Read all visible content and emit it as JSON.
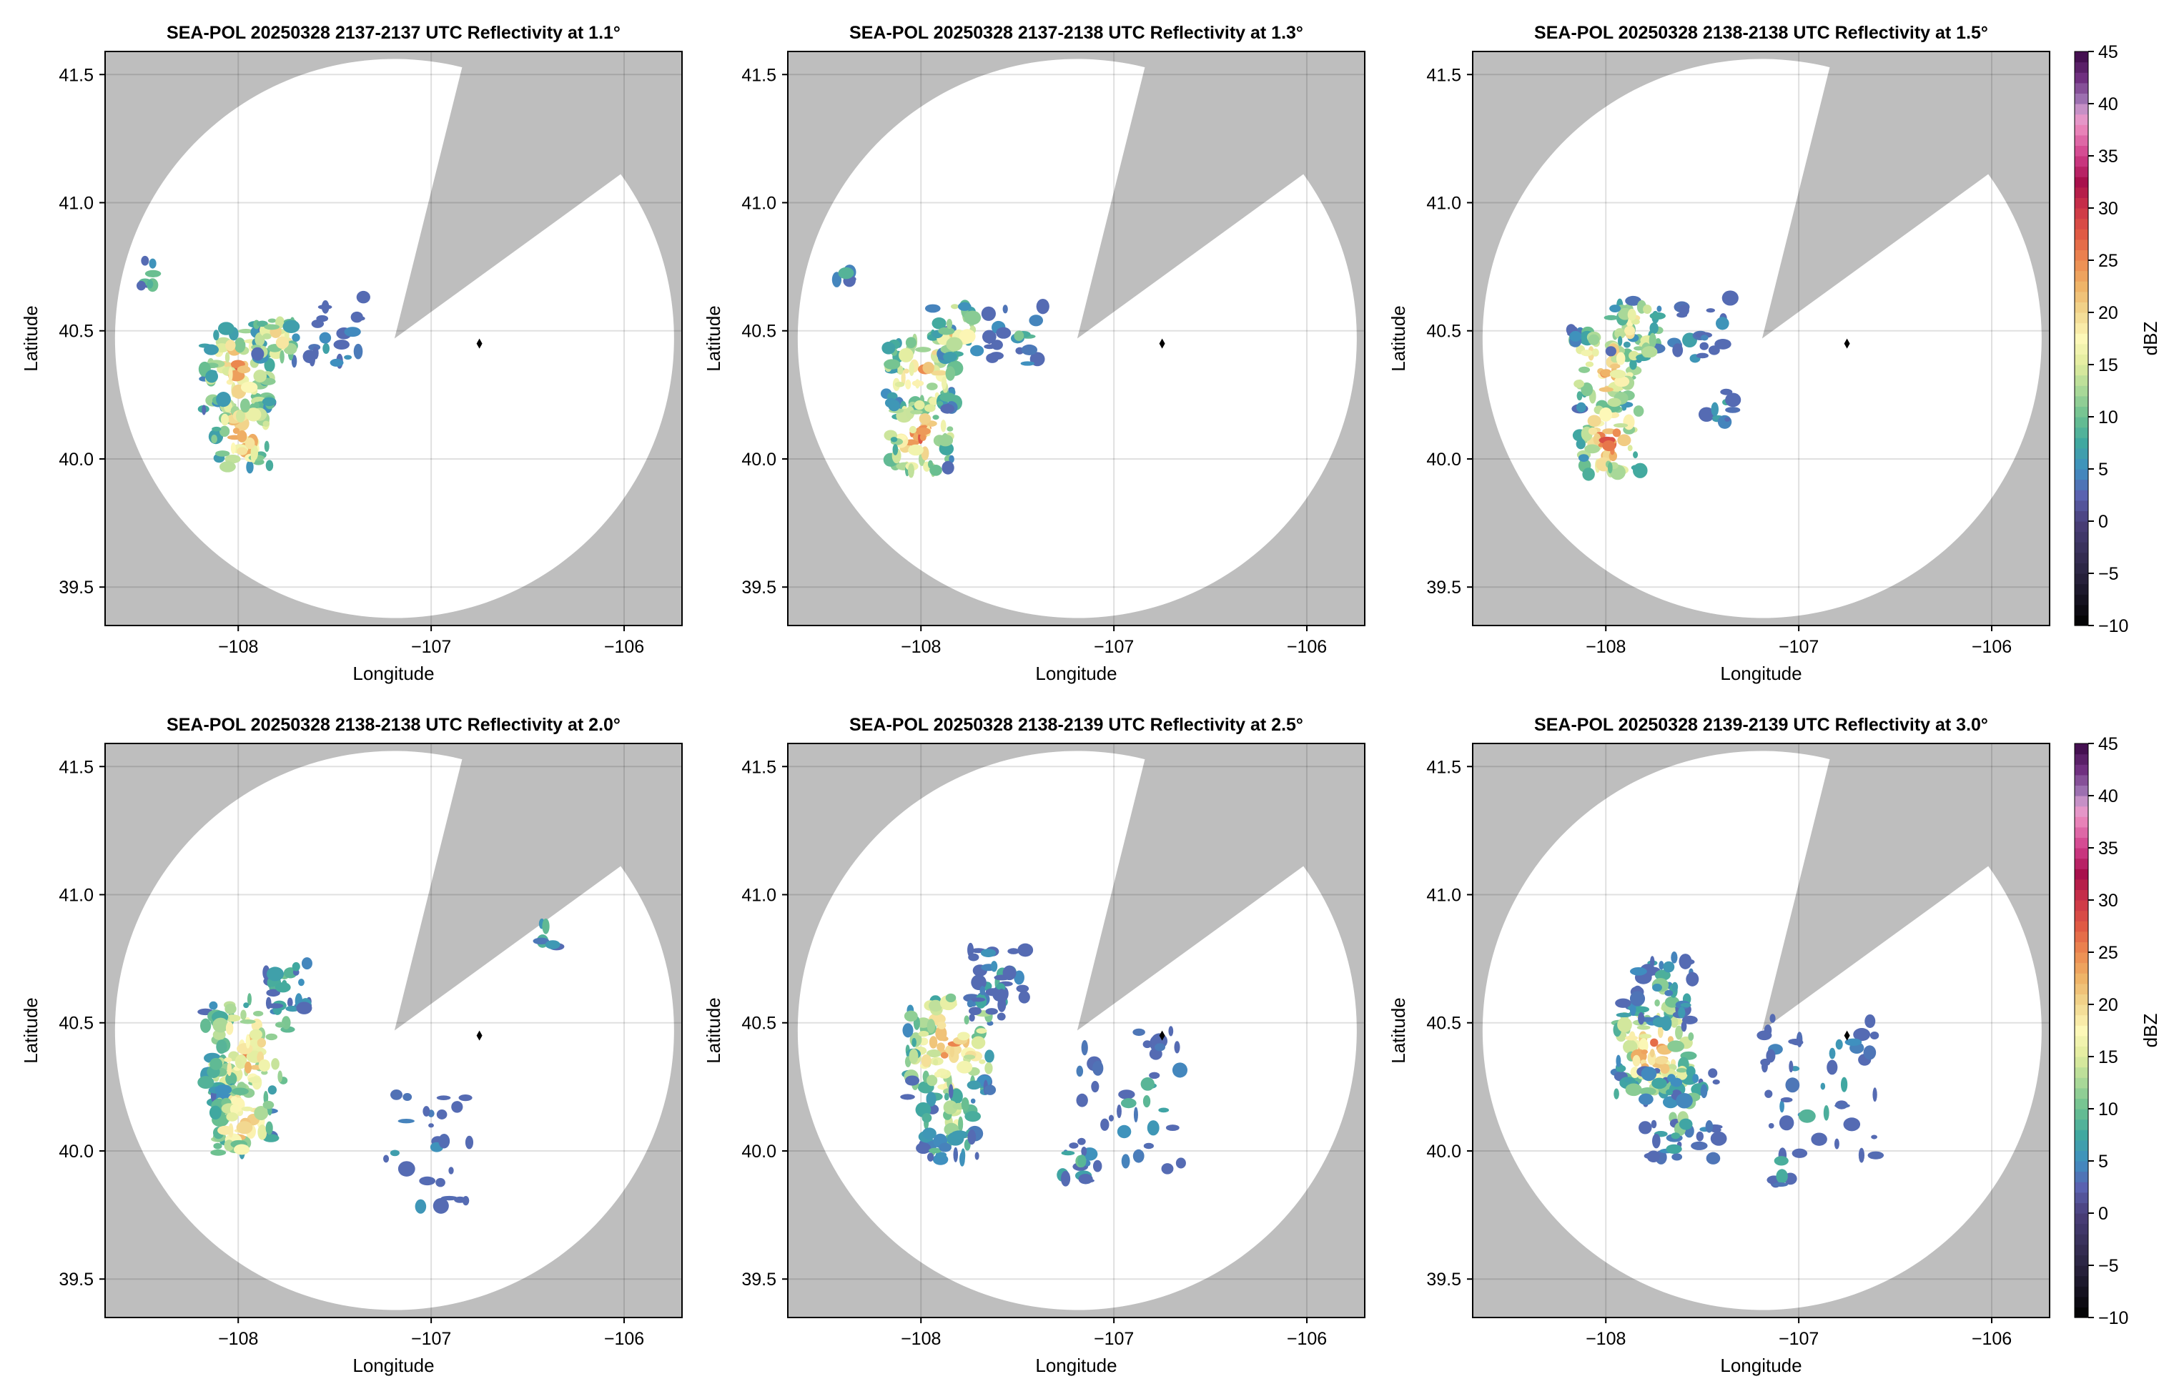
{
  "chart_data": {
    "type": "heatmap",
    "subtype": "radar PPI reflectivity, 2x3 panels",
    "xlim": [
      -108.69,
      -105.7
    ],
    "ylim": [
      39.35,
      41.59
    ],
    "xticks": [
      -108,
      -107,
      -106
    ],
    "xtick_labels": [
      "−108",
      "−107",
      "−106"
    ],
    "yticks": [
      39.5,
      40.0,
      40.5,
      41.0,
      41.5
    ],
    "ytick_labels": [
      "39.5",
      "40.0",
      "40.5",
      "41.0",
      "41.5"
    ],
    "xlabel": "Longitude",
    "ylabel": "Latitude",
    "grid": true,
    "radar_location": {
      "lon": -106.75,
      "lat": 40.45
    },
    "blocked_sector_bearing_deg": [
      14,
      54
    ],
    "panels": [
      {
        "title": "SEA-POL 20250328 2137-2137 UTC Reflectivity at 1.1°",
        "elevation": 1.1
      },
      {
        "title": "SEA-POL 20250328 2137-2138 UTC Reflectivity at 1.3°",
        "elevation": 1.3
      },
      {
        "title": "SEA-POL 20250328 2138-2138 UTC Reflectivity at 1.5°",
        "elevation": 1.5
      },
      {
        "title": "SEA-POL 20250328 2138-2138 UTC Reflectivity at 2.0°",
        "elevation": 2.0
      },
      {
        "title": "SEA-POL 20250328 2138-2139 UTC Reflectivity at 2.5°",
        "elevation": 2.5
      },
      {
        "title": "SEA-POL 20250328 2139-2139 UTC Reflectivity at 3.0°",
        "elevation": 3.0
      }
    ],
    "colorbar": {
      "label": "dBZ",
      "range": [
        -10,
        45
      ],
      "ticks": [
        -10,
        -5,
        0,
        5,
        10,
        15,
        20,
        25,
        30,
        35,
        40,
        45
      ],
      "tick_labels": [
        "−10",
        "−5",
        "0",
        "5",
        "10",
        "15",
        "20",
        "25",
        "30",
        "35",
        "40",
        "45"
      ]
    },
    "colors": {
      "blocked": "#bebebe",
      "grid": "#dddddd"
    }
  }
}
